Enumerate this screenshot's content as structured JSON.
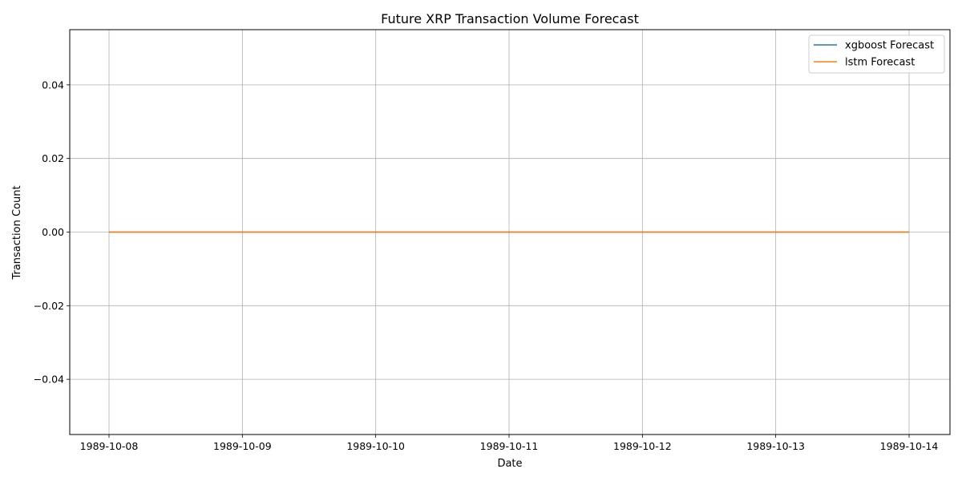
{
  "chart_data": {
    "type": "line",
    "title": "Future XRP Transaction Volume Forecast",
    "xlabel": "Date",
    "ylabel": "Transaction Count",
    "x": [
      "1989-10-08",
      "1989-10-09",
      "1989-10-10",
      "1989-10-11",
      "1989-10-12",
      "1989-10-13",
      "1989-10-14"
    ],
    "series": [
      {
        "name": "xgboost Forecast",
        "color": "#1f77b4",
        "values": [
          0,
          0,
          0,
          0,
          0,
          0,
          0
        ]
      },
      {
        "name": "lstm Forecast",
        "color": "#ff7f0e",
        "values": [
          0,
          0,
          0,
          0,
          0,
          0,
          0
        ]
      }
    ],
    "yticks": [
      -0.04,
      -0.02,
      0.0,
      0.02,
      0.04
    ],
    "ytick_labels": [
      "−0.04",
      "−0.02",
      "0.00",
      "0.02",
      "0.04"
    ],
    "ylim": [
      -0.055,
      0.055
    ],
    "grid": true,
    "legend_position": "top-right"
  }
}
